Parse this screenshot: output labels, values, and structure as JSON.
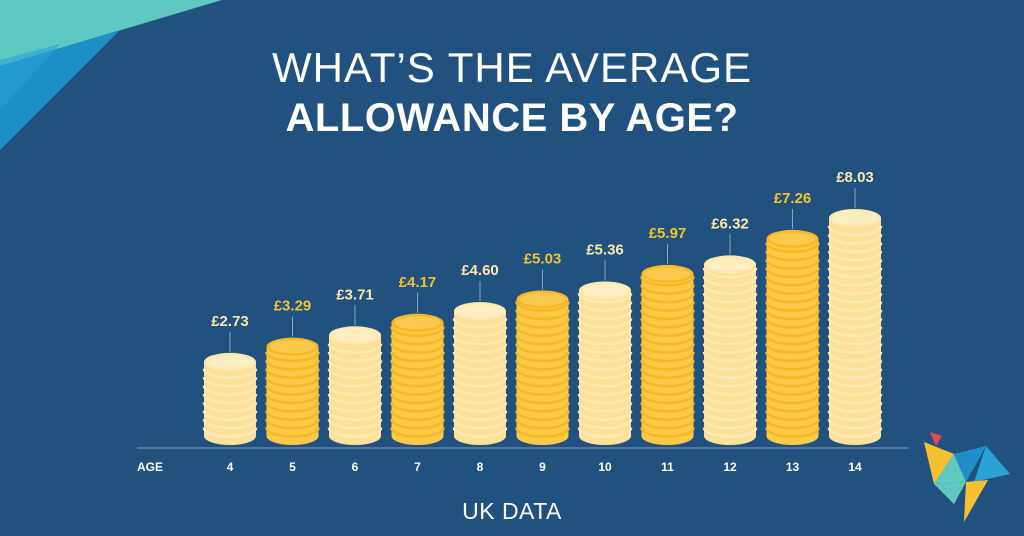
{
  "header": {
    "title_line1": "WHAT’S THE AVERAGE",
    "title_line2": "ALLOWANCE BY AGE?"
  },
  "footer": {
    "label": "UK DATA"
  },
  "colors": {
    "background": "#21527f",
    "coin_light": "#fde19a",
    "coin_light_alt": "#fde9b2",
    "coin_dark": "#fcc845",
    "coin_dark_alt": "#f7b827",
    "label_cream": "#fbe6ae",
    "label_gold": "#f5c131",
    "baseline": "#6f8fb0",
    "accent_teal": "#5fc8c0",
    "accent_blue": "#1f8fc8"
  },
  "chart_data": {
    "type": "bar",
    "xlabel": "AGE",
    "categories": [
      "4",
      "5",
      "6",
      "7",
      "8",
      "9",
      "10",
      "11",
      "12",
      "13",
      "14"
    ],
    "values": [
      2.73,
      3.29,
      3.71,
      4.17,
      4.6,
      5.03,
      5.36,
      5.97,
      6.32,
      7.26,
      8.03
    ],
    "value_labels": [
      "£2.73",
      "£3.29",
      "£3.71",
      "£4.17",
      "£4.60",
      "£5.03",
      "£5.36",
      "£5.97",
      "£6.32",
      "£7.26",
      "£8.03"
    ],
    "bar_styles": [
      "light",
      "dark",
      "light",
      "dark",
      "light",
      "dark",
      "light",
      "dark",
      "light",
      "dark",
      "light"
    ],
    "ylim": [
      0,
      8.03
    ],
    "grid": false,
    "legend": "none"
  },
  "logo": {
    "icon": "origami-bird-icon"
  }
}
